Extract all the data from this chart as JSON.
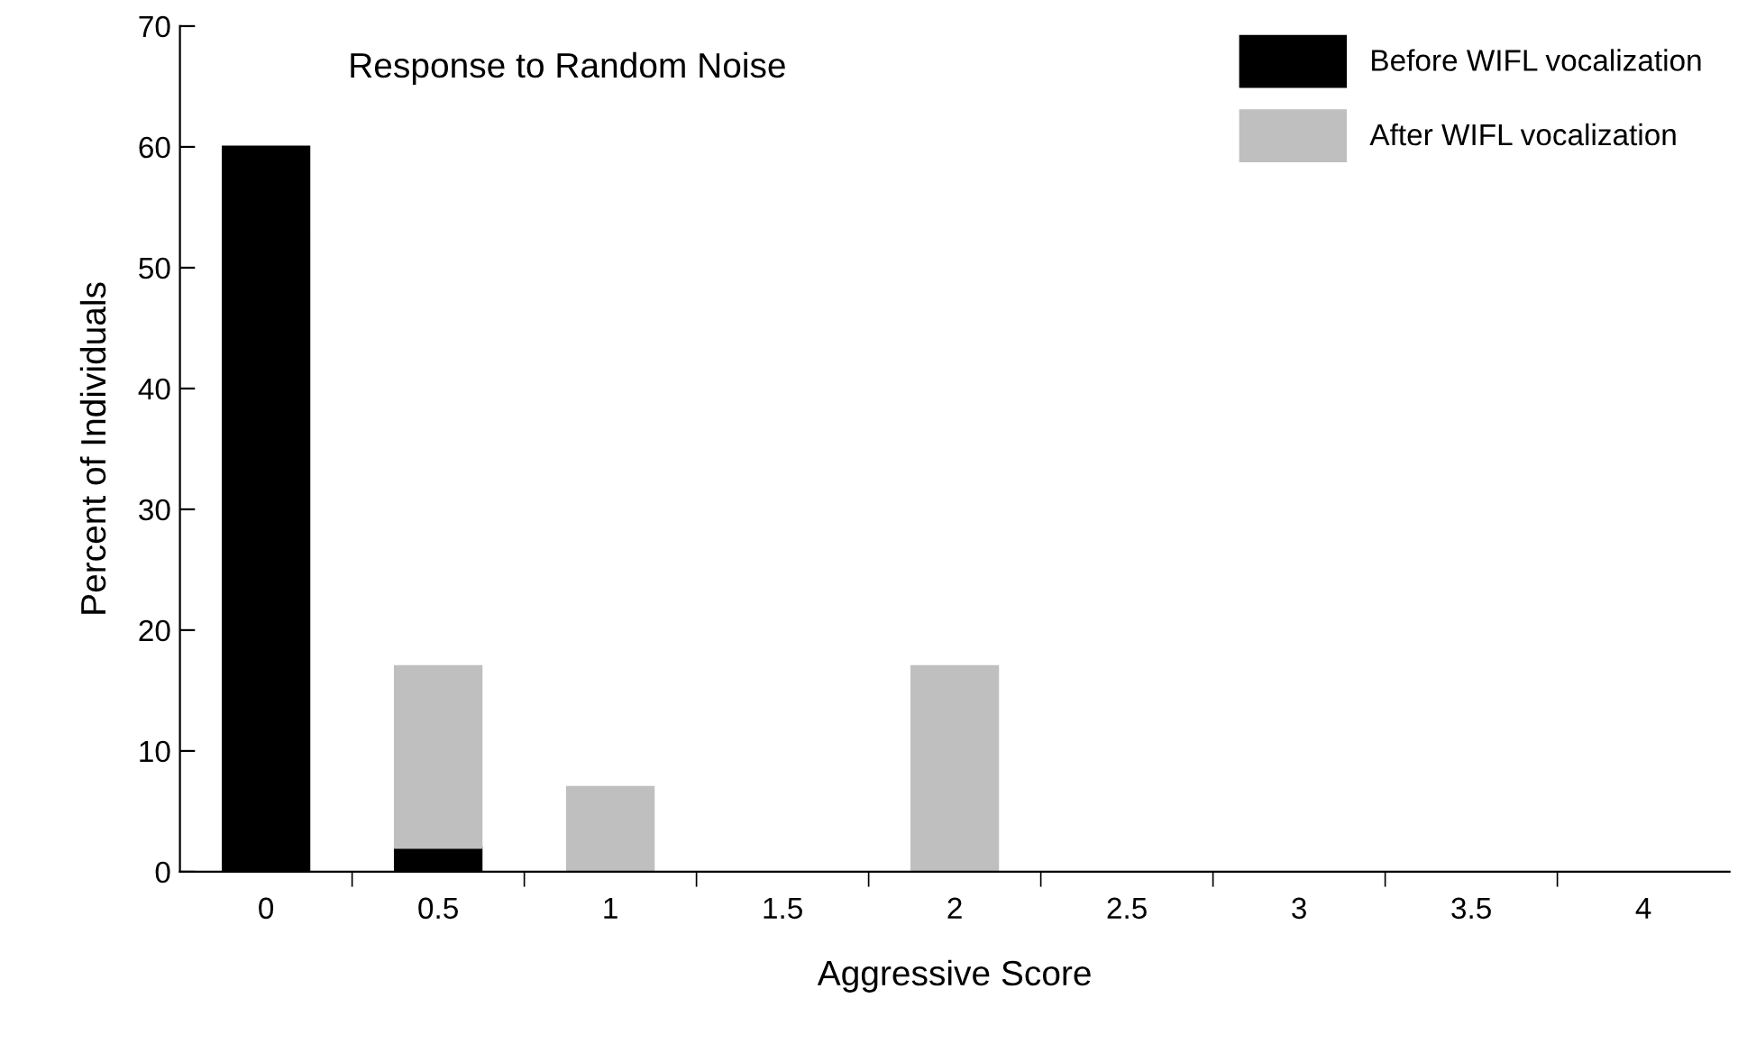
{
  "chart_data": {
    "type": "bar",
    "title": "Response to Random Noise",
    "xlabel": "Aggressive Score",
    "ylabel": "Percent of Individuals",
    "categories": [
      "0",
      "0.5",
      "1",
      "1.5",
      "2",
      "2.5",
      "3",
      "3.5",
      "4"
    ],
    "stacked": true,
    "series": [
      {
        "name": "Before WIFL vocalization",
        "color": "#000000",
        "values": [
          60,
          2,
          0,
          0,
          0,
          0,
          0,
          0,
          0
        ]
      },
      {
        "name": "After WIFL vocalization",
        "color": "#bfbfbf",
        "values": [
          0,
          15,
          7,
          0,
          17,
          0,
          0,
          0,
          0
        ]
      }
    ],
    "ylim": [
      0,
      70
    ],
    "yticks": [
      0,
      10,
      20,
      30,
      40,
      50,
      60,
      70
    ],
    "grid": false,
    "legend": "top right"
  }
}
